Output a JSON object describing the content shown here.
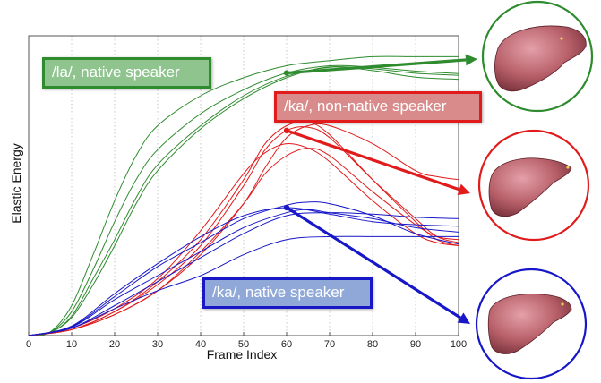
{
  "chart_data": {
    "type": "line",
    "xlabel": "Frame Index",
    "ylabel": "Elastic Energy",
    "xlim": [
      0,
      100
    ],
    "ylim": [
      0,
      1
    ],
    "x_ticks": [
      0,
      10,
      20,
      30,
      40,
      50,
      60,
      70,
      80,
      90,
      100
    ],
    "grid": "vertical dotted",
    "groups": [
      {
        "label": "/la/, native speaker",
        "color": "#2e8b2e",
        "label_bg": "#8fc48f",
        "marker": {
          "x": 60,
          "y": 0.876
        },
        "curves": [
          [
            [
              0,
              0
            ],
            [
              5,
              0.012
            ],
            [
              10,
              0.1
            ],
            [
              15,
              0.27
            ],
            [
              20,
              0.45
            ],
            [
              25,
              0.6
            ],
            [
              30,
              0.7
            ],
            [
              40,
              0.8
            ],
            [
              50,
              0.86
            ],
            [
              60,
              0.9
            ],
            [
              70,
              0.917
            ],
            [
              80,
              0.93
            ],
            [
              90,
              0.93
            ],
            [
              100,
              0.93
            ]
          ],
          [
            [
              0,
              0
            ],
            [
              5,
              0.011
            ],
            [
              10,
              0.08
            ],
            [
              15,
              0.22
            ],
            [
              20,
              0.38
            ],
            [
              25,
              0.52
            ],
            [
              30,
              0.62
            ],
            [
              40,
              0.74
            ],
            [
              50,
              0.82
            ],
            [
              60,
              0.876
            ],
            [
              70,
              0.9
            ],
            [
              80,
              0.895
            ],
            [
              90,
              0.882
            ],
            [
              100,
              0.874
            ]
          ],
          [
            [
              0,
              0
            ],
            [
              5,
              0.01
            ],
            [
              10,
              0.06
            ],
            [
              15,
              0.17
            ],
            [
              20,
              0.3
            ],
            [
              25,
              0.44
            ],
            [
              30,
              0.55
            ],
            [
              40,
              0.69
            ],
            [
              50,
              0.79
            ],
            [
              60,
              0.86
            ],
            [
              70,
              0.896
            ],
            [
              80,
              0.884
            ],
            [
              90,
              0.862
            ],
            [
              100,
              0.855
            ]
          ],
          [
            [
              0,
              0
            ],
            [
              5,
              0.01
            ],
            [
              10,
              0.065
            ],
            [
              15,
              0.19
            ],
            [
              20,
              0.32
            ],
            [
              25,
              0.46
            ],
            [
              30,
              0.57
            ],
            [
              40,
              0.7
            ],
            [
              50,
              0.8
            ],
            [
              60,
              0.865
            ],
            [
              70,
              0.895
            ],
            [
              80,
              0.89
            ],
            [
              90,
              0.875
            ],
            [
              100,
              0.868
            ]
          ]
        ]
      },
      {
        "label": "/ka/, non-native speaker",
        "color": "#e11b1b",
        "label_bg": "#d98b8b",
        "marker": {
          "x": 60,
          "y": 0.684
        },
        "curves": [
          [
            [
              0,
              0
            ],
            [
              10,
              0.02
            ],
            [
              20,
              0.08
            ],
            [
              30,
              0.18
            ],
            [
              40,
              0.32
            ],
            [
              50,
              0.52
            ],
            [
              55,
              0.64
            ],
            [
              60,
              0.7
            ],
            [
              65,
              0.712
            ],
            [
              70,
              0.67
            ],
            [
              80,
              0.52
            ],
            [
              90,
              0.38
            ],
            [
              95,
              0.32
            ],
            [
              100,
              0.3
            ]
          ],
          [
            [
              0,
              0
            ],
            [
              10,
              0.02
            ],
            [
              20,
              0.08
            ],
            [
              30,
              0.17
            ],
            [
              40,
              0.3
            ],
            [
              50,
              0.5
            ],
            [
              55,
              0.62
            ],
            [
              60,
              0.684
            ],
            [
              65,
              0.695
            ],
            [
              70,
              0.66
            ],
            [
              80,
              0.52
            ],
            [
              90,
              0.39
            ],
            [
              95,
              0.33
            ],
            [
              100,
              0.31
            ]
          ],
          [
            [
              0,
              0
            ],
            [
              10,
              0.025
            ],
            [
              20,
              0.09
            ],
            [
              30,
              0.19
            ],
            [
              40,
              0.35
            ],
            [
              50,
              0.54
            ],
            [
              55,
              0.61
            ],
            [
              60,
              0.64
            ],
            [
              65,
              0.625
            ],
            [
              70,
              0.58
            ],
            [
              80,
              0.45
            ],
            [
              90,
              0.34
            ],
            [
              95,
              0.31
            ],
            [
              100,
              0.3
            ]
          ],
          [
            [
              0,
              0
            ],
            [
              10,
              0.02
            ],
            [
              20,
              0.07
            ],
            [
              30,
              0.15
            ],
            [
              40,
              0.28
            ],
            [
              50,
              0.44
            ],
            [
              55,
              0.54
            ],
            [
              60,
              0.6
            ],
            [
              65,
              0.625
            ],
            [
              70,
              0.6
            ],
            [
              80,
              0.48
            ],
            [
              90,
              0.37
            ],
            [
              95,
              0.33
            ],
            [
              100,
              0.32
            ]
          ],
          [
            [
              0,
              0
            ],
            [
              10,
              0.02
            ],
            [
              20,
              0.07
            ],
            [
              30,
              0.15
            ],
            [
              40,
              0.27
            ],
            [
              50,
              0.44
            ],
            [
              55,
              0.56
            ],
            [
              60,
              0.66
            ],
            [
              65,
              0.7
            ],
            [
              70,
              0.7
            ],
            [
              80,
              0.64
            ],
            [
              90,
              0.55
            ],
            [
              95,
              0.53
            ],
            [
              100,
              0.52
            ]
          ]
        ]
      },
      {
        "label": "/ka/, native speaker",
        "color": "#1717c8",
        "label_bg": "#8fa8d8",
        "marker": {
          "x": 60,
          "y": 0.427
        },
        "curves": [
          [
            [
              0,
              0
            ],
            [
              10,
              0.03
            ],
            [
              20,
              0.13
            ],
            [
              30,
              0.23
            ],
            [
              40,
              0.31
            ],
            [
              50,
              0.39
            ],
            [
              60,
              0.435
            ],
            [
              65,
              0.445
            ],
            [
              70,
              0.44
            ],
            [
              80,
              0.4
            ],
            [
              90,
              0.34
            ],
            [
              100,
              0.305
            ]
          ],
          [
            [
              0,
              0
            ],
            [
              10,
              0.028
            ],
            [
              20,
              0.12
            ],
            [
              30,
              0.2
            ],
            [
              40,
              0.28
            ],
            [
              50,
              0.36
            ],
            [
              60,
              0.41
            ],
            [
              65,
              0.42
            ],
            [
              70,
              0.41
            ],
            [
              80,
              0.39
            ],
            [
              90,
              0.36
            ],
            [
              100,
              0.345
            ]
          ],
          [
            [
              0,
              0
            ],
            [
              10,
              0.032
            ],
            [
              20,
              0.14
            ],
            [
              30,
              0.24
            ],
            [
              40,
              0.33
            ],
            [
              50,
              0.4
            ],
            [
              60,
              0.427
            ],
            [
              70,
              0.405
            ],
            [
              80,
              0.38
            ],
            [
              90,
              0.37
            ],
            [
              100,
              0.365
            ]
          ],
          [
            [
              0,
              0
            ],
            [
              10,
              0.025
            ],
            [
              20,
              0.1
            ],
            [
              30,
              0.18
            ],
            [
              40,
              0.26
            ],
            [
              50,
              0.34
            ],
            [
              60,
              0.4
            ],
            [
              70,
              0.41
            ],
            [
              80,
              0.405
            ],
            [
              90,
              0.395
            ],
            [
              100,
              0.39
            ]
          ],
          [
            [
              0,
              0
            ],
            [
              10,
              0.025
            ],
            [
              20,
              0.09
            ],
            [
              30,
              0.15
            ],
            [
              40,
              0.2
            ],
            [
              50,
              0.27
            ],
            [
              60,
              0.32
            ],
            [
              70,
              0.33
            ],
            [
              80,
              0.33
            ],
            [
              90,
              0.33
            ],
            [
              100,
              0.33
            ]
          ]
        ]
      }
    ]
  }
}
